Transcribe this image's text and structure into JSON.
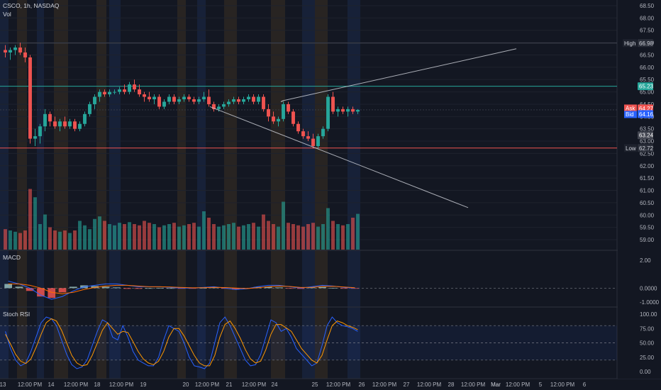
{
  "header": {
    "symbol_line": "CSCO, 1h, NASDAQ",
    "volume_label": "Vol"
  },
  "price_scale": {
    "ticks": [
      "68.50",
      "68.00",
      "67.50",
      "67.00",
      "66.50",
      "66.00",
      "65.50",
      "65.00",
      "64.50",
      "64.00",
      "63.50",
      "63.00",
      "62.50",
      "62.00",
      "61.50",
      "61.00",
      "60.50",
      "60.00",
      "59.50",
      "59.00"
    ],
    "high": {
      "label": "High",
      "value": "66.98",
      "price": 66.98
    },
    "low": {
      "label": "Low",
      "value": "62.72",
      "price": 62.72
    },
    "level_green": {
      "value": "65.23",
      "price": 65.23
    },
    "level_gray": {
      "value": "63.24",
      "price": 63.24
    },
    "ask": {
      "label": "Ask",
      "value": "64.27"
    },
    "bid": {
      "label": "Bid",
      "value": "64.16"
    }
  },
  "macd": {
    "title": "MACD",
    "ticks": [
      "2.00",
      "0.0000",
      "-1.0000"
    ]
  },
  "stoch": {
    "title": "Stoch RSI",
    "ticks": [
      "100.00",
      "75.00",
      "50.00",
      "25.00",
      "0.00"
    ]
  },
  "time_axis": {
    "labels": [
      "13",
      "12:00 PM",
      "14",
      "12:00 PM",
      "18",
      "12:00 PM",
      "19",
      "20",
      "12:00 PM",
      "21",
      "12:00 PM",
      "24",
      "25",
      "12:00 PM",
      "26",
      "12:00 PM",
      "27",
      "12:00 PM",
      "28",
      "12:00 PM",
      "Mar",
      "12:00 PM",
      "5",
      "12:00 PM",
      "6"
    ]
  },
  "colors": {
    "up": "#26a69a",
    "down": "#ef5350",
    "macd_line": "#2962ff",
    "signal_line": "#ff6d00",
    "k_line": "#2962ff",
    "d_line": "#ff9800",
    "high_line": "#2a2e39",
    "green_level": "#26a69a",
    "red_level": "#ef5350",
    "trendline": "#d1d4dc"
  },
  "chart_data": [
    {
      "type": "candlestick",
      "title": "CSCO, 1h, NASDAQ",
      "ylim": [
        58.8,
        68.7
      ],
      "candles": [
        [
          66.7,
          66.9,
          66.4,
          66.6
        ],
        [
          66.6,
          66.8,
          66.3,
          66.7
        ],
        [
          66.7,
          66.9,
          66.5,
          66.8
        ],
        [
          66.8,
          67.0,
          66.5,
          66.6
        ],
        [
          66.6,
          66.8,
          66.2,
          66.4
        ],
        [
          66.4,
          66.5,
          62.9,
          63.1
        ],
        [
          63.1,
          63.5,
          62.8,
          63.2
        ],
        [
          63.2,
          63.7,
          62.9,
          63.6
        ],
        [
          63.6,
          64.3,
          63.4,
          64.1
        ],
        [
          64.1,
          64.2,
          63.6,
          63.8
        ],
        [
          63.8,
          64.0,
          63.5,
          63.6
        ],
        [
          63.6,
          63.9,
          63.4,
          63.8
        ],
        [
          63.8,
          64.0,
          63.5,
          63.6
        ],
        [
          63.6,
          63.9,
          63.5,
          63.8
        ],
        [
          63.8,
          63.9,
          63.4,
          63.5
        ],
        [
          63.5,
          63.8,
          63.4,
          63.7
        ],
        [
          63.7,
          64.2,
          63.6,
          64.1
        ],
        [
          64.1,
          64.6,
          64.0,
          64.5
        ],
        [
          64.5,
          64.9,
          64.3,
          64.8
        ],
        [
          64.8,
          65.1,
          64.6,
          65.0
        ],
        [
          65.0,
          65.1,
          64.8,
          64.9
        ],
        [
          64.9,
          65.1,
          64.8,
          65.0
        ],
        [
          65.0,
          65.1,
          64.9,
          65.0
        ],
        [
          65.0,
          65.2,
          64.9,
          65.1
        ],
        [
          65.1,
          65.3,
          64.9,
          65.0
        ],
        [
          65.0,
          65.4,
          64.9,
          65.3
        ],
        [
          65.3,
          65.5,
          65.0,
          65.1
        ],
        [
          65.1,
          65.3,
          64.8,
          64.9
        ],
        [
          64.9,
          65.0,
          64.6,
          64.8
        ],
        [
          64.8,
          65.0,
          64.6,
          64.7
        ],
        [
          64.7,
          64.9,
          64.5,
          64.8
        ],
        [
          64.8,
          64.9,
          64.3,
          64.4
        ],
        [
          64.4,
          64.7,
          64.3,
          64.6
        ],
        [
          64.6,
          64.9,
          64.5,
          64.8
        ],
        [
          64.8,
          64.9,
          64.5,
          64.6
        ],
        [
          64.6,
          64.8,
          64.5,
          64.7
        ],
        [
          64.7,
          64.9,
          64.6,
          64.8
        ],
        [
          64.8,
          64.9,
          64.6,
          64.7
        ],
        [
          64.7,
          64.8,
          64.5,
          64.6
        ],
        [
          64.6,
          64.8,
          64.5,
          64.7
        ],
        [
          64.7,
          65.0,
          64.6,
          64.8
        ],
        [
          64.8,
          65.1,
          64.4,
          64.5
        ],
        [
          64.5,
          64.6,
          64.2,
          64.3
        ],
        [
          64.3,
          64.5,
          64.2,
          64.4
        ],
        [
          64.4,
          64.6,
          64.3,
          64.5
        ],
        [
          64.5,
          64.7,
          64.4,
          64.6
        ],
        [
          64.6,
          64.8,
          64.5,
          64.7
        ],
        [
          64.7,
          64.8,
          64.5,
          64.6
        ],
        [
          64.6,
          64.8,
          64.5,
          64.7
        ],
        [
          64.7,
          64.9,
          64.6,
          64.8
        ],
        [
          64.8,
          64.9,
          64.5,
          64.6
        ],
        [
          64.6,
          64.9,
          64.5,
          64.8
        ],
        [
          64.8,
          64.9,
          64.2,
          64.3
        ],
        [
          64.3,
          64.5,
          63.8,
          64.0
        ],
        [
          64.0,
          64.2,
          63.7,
          63.8
        ],
        [
          63.8,
          64.0,
          63.6,
          63.9
        ],
        [
          63.9,
          64.6,
          63.8,
          64.5
        ],
        [
          64.5,
          64.6,
          64.1,
          64.2
        ],
        [
          64.2,
          64.3,
          63.6,
          63.7
        ],
        [
          63.7,
          63.8,
          63.3,
          63.4
        ],
        [
          63.4,
          63.5,
          63.1,
          63.2
        ],
        [
          63.2,
          63.4,
          63.0,
          63.1
        ],
        [
          63.1,
          63.3,
          62.7,
          62.8
        ],
        [
          62.8,
          63.3,
          62.7,
          63.2
        ],
        [
          63.2,
          63.6,
          63.1,
          63.5
        ],
        [
          63.5,
          64.9,
          63.4,
          64.8
        ],
        [
          64.8,
          65.0,
          64.1,
          64.2
        ],
        [
          64.2,
          64.4,
          64.0,
          64.3
        ],
        [
          64.3,
          64.4,
          64.1,
          64.2
        ],
        [
          64.2,
          64.4,
          64.0,
          64.3
        ],
        [
          64.3,
          64.4,
          64.1,
          64.2
        ],
        [
          64.2,
          64.3,
          64.1,
          64.27
        ]
      ],
      "volume": [
        0.32,
        0.3,
        0.28,
        0.26,
        0.3,
        0.95,
        0.82,
        0.4,
        0.55,
        0.35,
        0.3,
        0.28,
        0.3,
        0.26,
        0.3,
        0.45,
        0.38,
        0.32,
        0.48,
        0.52,
        0.45,
        0.4,
        0.38,
        0.42,
        0.4,
        0.43,
        0.4,
        0.38,
        0.45,
        0.42,
        0.4,
        0.35,
        0.38,
        0.4,
        0.42,
        0.36,
        0.38,
        0.4,
        0.42,
        0.36,
        0.6,
        0.5,
        0.4,
        0.36,
        0.38,
        0.4,
        0.42,
        0.36,
        0.38,
        0.4,
        0.42,
        0.36,
        0.55,
        0.45,
        0.4,
        0.36,
        0.75,
        0.42,
        0.4,
        0.38,
        0.36,
        0.4,
        0.42,
        0.36,
        0.4,
        0.65,
        0.45,
        0.4,
        0.38,
        0.4,
        0.5,
        0.56
      ]
    },
    {
      "type": "line",
      "title": "MACD",
      "ylim": [
        -1.2,
        2.4
      ],
      "series": [
        {
          "values": [
            0.5,
            0.3,
            0.0,
            -0.5,
            -0.8,
            -0.6,
            -0.2,
            0.1,
            0.2,
            0.3,
            0.3,
            0.2,
            0.1,
            0.1,
            0.1,
            0.05,
            0.0,
            0.0,
            0.05,
            0.1,
            0.0,
            -0.1,
            -0.05,
            0.1,
            0.2,
            0.2,
            0.1,
            0.0,
            0.1,
            0.2,
            0.15,
            0.05,
            0.0
          ]
        },
        {
          "values": [
            0.3,
            0.3,
            0.2,
            0.0,
            -0.3,
            -0.4,
            -0.3,
            -0.1,
            0.05,
            0.15,
            0.2,
            0.2,
            0.15,
            0.1,
            0.1,
            0.08,
            0.05,
            0.02,
            0.03,
            0.06,
            0.04,
            0.0,
            -0.03,
            0.02,
            0.1,
            0.15,
            0.12,
            0.05,
            0.06,
            0.12,
            0.13,
            0.08,
            0.03
          ]
        }
      ],
      "histogram": [
        0.3,
        0.1,
        -0.2,
        -0.6,
        -0.7,
        -0.3,
        0.1,
        0.2,
        0.15,
        0.1,
        0.05,
        -0.05,
        -0.05,
        0.0,
        0.02,
        0.0,
        -0.03,
        -0.02,
        0.02,
        0.04,
        -0.04,
        -0.1,
        -0.02,
        0.08,
        0.1,
        0.05,
        -0.02,
        -0.05,
        0.04,
        0.08,
        0.02,
        -0.03,
        -0.03
      ]
    },
    {
      "type": "line",
      "title": "Stoch RSI",
      "ylim": [
        -8,
        108
      ],
      "series": [
        {
          "values": [
            70,
            40,
            20,
            10,
            15,
            35,
            60,
            85,
            95,
            92,
            80,
            55,
            30,
            12,
            5,
            8,
            20,
            45,
            70,
            90,
            85,
            60,
            55,
            80,
            60,
            35,
            20,
            15,
            10,
            10,
            25,
            55,
            80,
            75,
            70,
            50,
            25,
            10,
            8,
            5,
            15,
            50,
            85,
            95,
            80,
            60,
            40,
            20,
            10,
            12,
            30,
            60,
            90,
            85,
            70,
            75,
            60,
            40,
            30,
            20,
            10,
            15,
            45,
            80,
            95,
            85,
            80,
            78,
            75,
            70
          ]
        },
        {
          "values": [
            65,
            48,
            30,
            18,
            14,
            22,
            42,
            65,
            85,
            92,
            88,
            72,
            50,
            28,
            15,
            10,
            12,
            28,
            50,
            72,
            85,
            75,
            65,
            70,
            68,
            52,
            35,
            22,
            15,
            12,
            18,
            35,
            60,
            75,
            75,
            62,
            45,
            28,
            15,
            10,
            10,
            28,
            60,
            82,
            88,
            75,
            58,
            38,
            22,
            15,
            18,
            38,
            65,
            82,
            82,
            76,
            70,
            55,
            40,
            30,
            20,
            15,
            28,
            55,
            80,
            88,
            85,
            80,
            77,
            73
          ]
        }
      ]
    }
  ]
}
